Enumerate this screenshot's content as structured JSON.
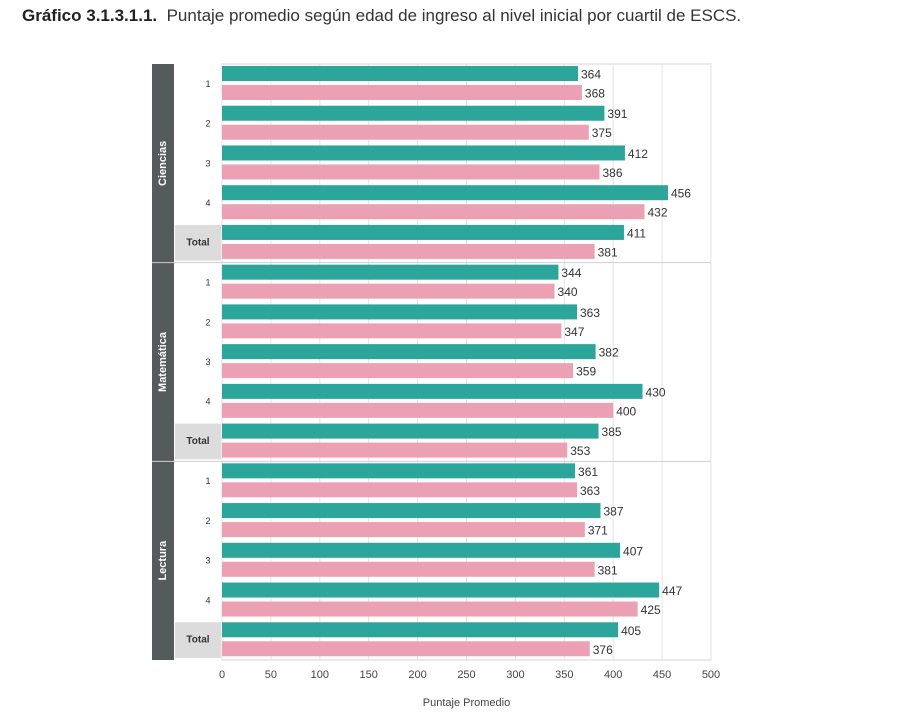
{
  "title": {
    "label": "Gráfico 3.1.3.1.1.",
    "text": "Puntaje promedio según edad de ingreso al nivel inicial por cuartil de ESCS."
  },
  "chart_data": {
    "type": "bar",
    "orientation": "horizontal",
    "xlabel": "Puntaje Promedio",
    "xlim": [
      0,
      500
    ],
    "xticks": [
      0,
      50,
      100,
      150,
      200,
      250,
      300,
      350,
      400,
      450,
      500
    ],
    "grid": true,
    "legend": "none",
    "colors": [
      "#2ca59a",
      "#eba1b3"
    ],
    "panel_color": "#555a5a",
    "total_bg": "#dcdcdc",
    "categories": [
      "1",
      "2",
      "3",
      "4",
      "Total"
    ],
    "panels": [
      {
        "name": "Ciencias",
        "series": [
          {
            "values": [
              364,
              391,
              412,
              456,
              411
            ]
          },
          {
            "values": [
              368,
              375,
              386,
              432,
              381
            ]
          }
        ]
      },
      {
        "name": "Matemática",
        "series": [
          {
            "values": [
              344,
              363,
              382,
              430,
              385
            ]
          },
          {
            "values": [
              340,
              347,
              359,
              400,
              353
            ]
          }
        ]
      },
      {
        "name": "Lectura",
        "series": [
          {
            "values": [
              361,
              387,
              407,
              447,
              405
            ]
          },
          {
            "values": [
              363,
              371,
              381,
              425,
              376
            ]
          }
        ]
      }
    ]
  }
}
